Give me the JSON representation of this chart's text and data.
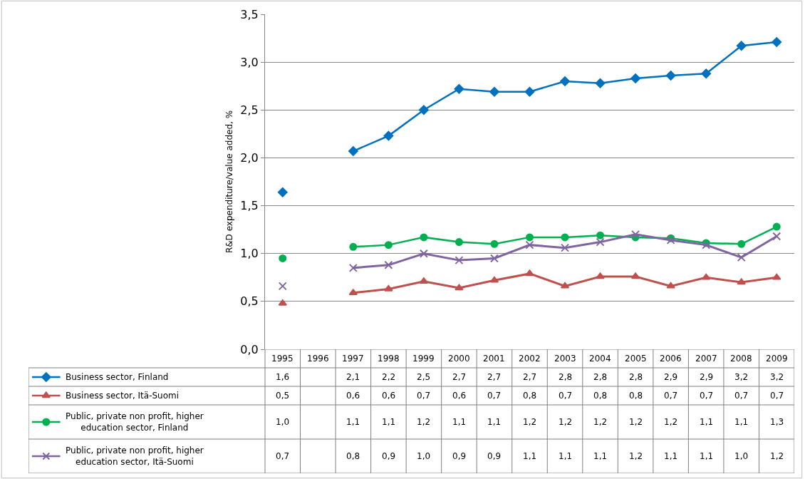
{
  "chart_data": {
    "type": "line",
    "ylabel": "R&D expenditure/value added, %",
    "categories": [
      "1995",
      "1996",
      "1997",
      "1998",
      "1999",
      "2000",
      "2001",
      "2002",
      "2003",
      "2004",
      "2005",
      "2006",
      "2007",
      "2008",
      "2009"
    ],
    "series": [
      {
        "name": "Business sector, Finland",
        "color": "#0070c0",
        "marker": "diamond",
        "values": [
          1.64,
          null,
          2.07,
          2.23,
          2.5,
          2.72,
          2.69,
          2.69,
          2.8,
          2.78,
          2.83,
          2.86,
          2.88,
          3.17,
          3.21
        ],
        "value_labels": [
          "1,6",
          null,
          "2,1",
          "2,2",
          "2,5",
          "2,7",
          "2,7",
          "2,7",
          "2,8",
          "2,8",
          "2,8",
          "2,9",
          "2,9",
          "3,2",
          "3,2"
        ]
      },
      {
        "name": "Business sector, Itä-Suomi",
        "color": "#c0504d",
        "marker": "triangle",
        "values": [
          0.48,
          null,
          0.59,
          0.63,
          0.71,
          0.64,
          0.72,
          0.79,
          0.66,
          0.76,
          0.76,
          0.66,
          0.75,
          0.7,
          0.75
        ],
        "value_labels": [
          "0,5",
          null,
          "0,6",
          "0,6",
          "0,7",
          "0,6",
          "0,7",
          "0,8",
          "0,7",
          "0,8",
          "0,8",
          "0,7",
          "0,7",
          "0,7",
          "0,7"
        ]
      },
      {
        "name": "Public, private non profit, higher education sector, Finland",
        "color": "#00b050",
        "marker": "circle",
        "values": [
          0.95,
          null,
          1.07,
          1.09,
          1.17,
          1.12,
          1.1,
          1.17,
          1.17,
          1.19,
          1.17,
          1.16,
          1.11,
          1.1,
          1.28
        ],
        "value_labels": [
          "1,0",
          null,
          "1,1",
          "1,1",
          "1,2",
          "1,1",
          "1,1",
          "1,2",
          "1,2",
          "1,2",
          "1,2",
          "1,2",
          "1,1",
          "1,1",
          "1,3"
        ]
      },
      {
        "name": "Public, private non profit, higher education sector, Itä-Suomi",
        "color": "#8064a2",
        "marker": "cross",
        "values": [
          0.66,
          null,
          0.85,
          0.88,
          1.0,
          0.93,
          0.95,
          1.09,
          1.06,
          1.12,
          1.2,
          1.14,
          1.09,
          0.96,
          1.18
        ],
        "value_labels": [
          "0,7",
          null,
          "0,8",
          "0,9",
          "1,0",
          "0,9",
          "0,9",
          "1,1",
          "1,1",
          "1,1",
          "1,2",
          "1,1",
          "1,1",
          "1,0",
          "1,2"
        ]
      }
    ],
    "ylim": [
      0,
      3.5
    ],
    "yticks": [
      {
        "value": 0,
        "label": "0,0"
      },
      {
        "value": 0.5,
        "label": "0,5"
      },
      {
        "value": 1.0,
        "label": "1,0"
      },
      {
        "value": 1.5,
        "label": "1,5"
      },
      {
        "value": 2.0,
        "label": "2,0"
      },
      {
        "value": 2.5,
        "label": "2,5"
      },
      {
        "value": 3.0,
        "label": "3,0"
      },
      {
        "value": 3.5,
        "label": "3,5"
      }
    ],
    "grid": "y",
    "legend": "bottom",
    "line_style": "solid"
  }
}
